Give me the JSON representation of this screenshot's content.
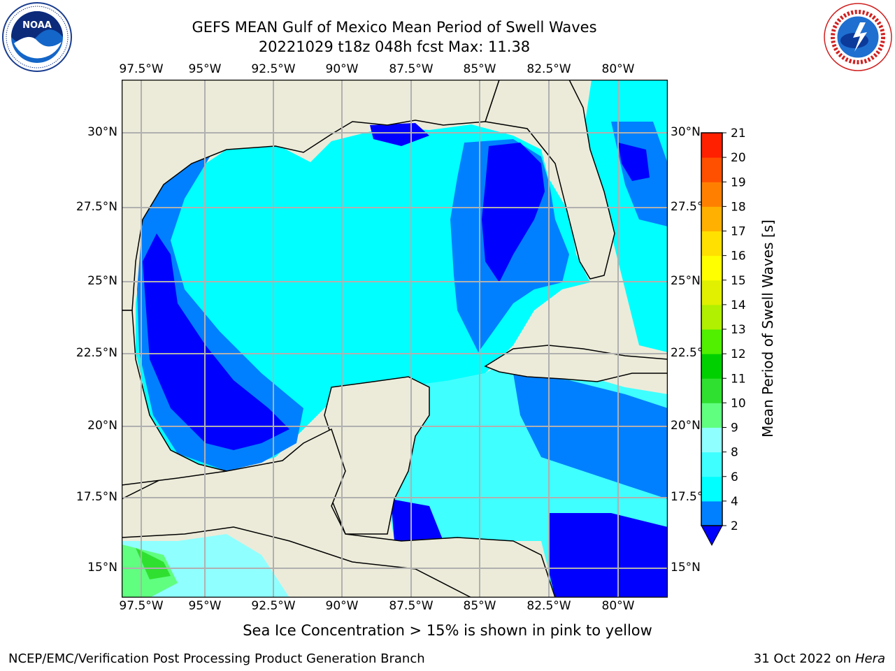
{
  "header": {
    "title_line1": "GEFS MEAN Gulf of Mexico Mean Period of Swell Waves",
    "title_line2": "20221029 t18z 048h fcst   Max: 11.38"
  },
  "logos": {
    "left": {
      "name": "NOAA",
      "ring_text": "NATIONAL OCEANIC AND ATMOSPHERIC ADMINISTRATION · U.S. DEPARTMENT OF COMMERCE"
    },
    "right": {
      "ring_text": "NATIONAL WEATHER SERVICE"
    }
  },
  "map": {
    "lon_labels": [
      "97.5°W",
      "95°W",
      "92.5°W",
      "90°W",
      "87.5°W",
      "85°W",
      "82.5°W",
      "80°W"
    ],
    "lat_labels": [
      "30°N",
      "27.5°N",
      "25°N",
      "22.5°N",
      "20°N",
      "17.5°N",
      "15°N"
    ],
    "colors": {
      "land": "#ecebd9",
      "grid": "#b0b0b0",
      "coast": "#000000"
    }
  },
  "colorbar": {
    "label": "Mean Period of Swell Waves [s]",
    "ticks": [
      "2",
      "4",
      "6",
      "8",
      "9",
      "10",
      "11",
      "12",
      "13",
      "14",
      "15",
      "16",
      "17",
      "18",
      "19",
      "20",
      "21"
    ],
    "colors": [
      "#0000ff",
      "#0080ff",
      "#00ffff",
      "#40ffff",
      "#90ffff",
      "#60ff80",
      "#30e030",
      "#00d000",
      "#50f000",
      "#b0f000",
      "#e0f000",
      "#ffff00",
      "#ffe000",
      "#ffb000",
      "#ff8000",
      "#ff5000",
      "#ff2000",
      "#ff0000"
    ]
  },
  "notes": {
    "sea_ice": "Sea Ice Concentration > 15% is shown in pink to yellow",
    "footer_left": "NCEP/EMC/Verification Post Processing Product Generation Branch",
    "footer_date": "31 Oct 2022 on ",
    "footer_host": "Hera"
  }
}
